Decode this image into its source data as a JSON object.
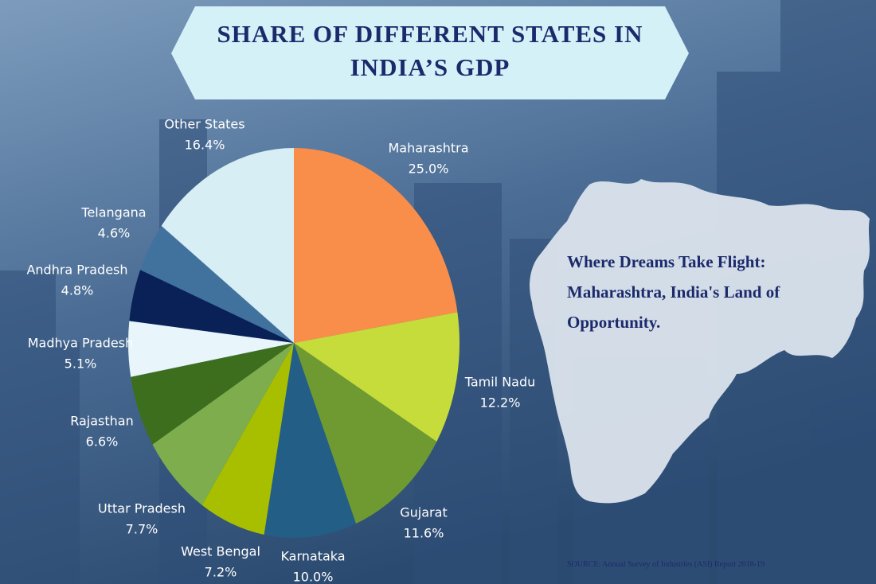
{
  "chart_data": {
    "type": "pie",
    "title": "SHARE OF DIFFERENT STATES IN INDIA’S GDP",
    "categories": [
      "Maharashtra",
      "Tamil Nadu",
      "Gujarat",
      "Karnataka",
      "West Bengal",
      "Uttar Pradesh",
      "Rajasthan",
      "Madhya Pradesh",
      "Andhra Pradesh",
      "Telangana",
      "Other States"
    ],
    "values": [
      25.0,
      12.2,
      11.6,
      10.0,
      7.2,
      7.7,
      6.6,
      5.1,
      4.8,
      4.6,
      16.4
    ],
    "value_labels": [
      "25.0%",
      "12.2%",
      "11.6%",
      "10.0%",
      "7.2%",
      "7.7%",
      "6.6%",
      "5.1%",
      "4.8%",
      "4.6%",
      "16.4%"
    ],
    "colors": [
      "#f98e4a",
      "#c5dc3a",
      "#6f9a32",
      "#235e87",
      "#a8bf00",
      "#7ead4d",
      "#3d6e1e",
      "#e8f6fb",
      "#0a2158",
      "#41729e",
      "#d7eef5"
    ],
    "annotations": [
      "Where Dreams Take Flight: Maharashtra, India's Land of Opportunity.",
      "SOURCE: Annual Survey of Industries (ASI) Report 2018-19"
    ]
  }
}
